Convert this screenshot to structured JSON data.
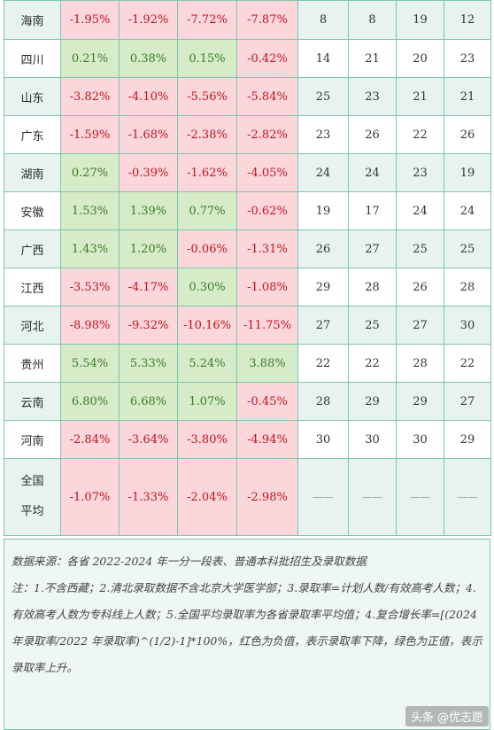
{
  "rows": [
    {
      "province": "海南",
      "v": [
        "-1.95%",
        "-1.92%",
        "-7.72%",
        "-7.87%"
      ],
      "s": [
        "neg",
        "neg",
        "neg",
        "neg"
      ],
      "ranks": [
        "8",
        "8",
        "19",
        "12"
      ]
    },
    {
      "province": "四川",
      "v": [
        "0.21%",
        "0.38%",
        "0.15%",
        "-0.42%"
      ],
      "s": [
        "pos",
        "pos",
        "pos",
        "neg"
      ],
      "ranks": [
        "14",
        "21",
        "20",
        "23"
      ]
    },
    {
      "province": "山东",
      "v": [
        "-3.82%",
        "-4.10%",
        "-5.56%",
        "-5.84%"
      ],
      "s": [
        "neg",
        "neg",
        "neg",
        "neg"
      ],
      "ranks": [
        "25",
        "23",
        "21",
        "21"
      ]
    },
    {
      "province": "广东",
      "v": [
        "-1.59%",
        "-1.68%",
        "-2.38%",
        "-2.82%"
      ],
      "s": [
        "neg",
        "neg",
        "neg",
        "neg"
      ],
      "ranks": [
        "23",
        "26",
        "22",
        "26"
      ]
    },
    {
      "province": "湖南",
      "v": [
        "0.27%",
        "-0.39%",
        "-1.62%",
        "-4.05%"
      ],
      "s": [
        "pos",
        "neg",
        "neg",
        "neg"
      ],
      "ranks": [
        "24",
        "24",
        "23",
        "19"
      ]
    },
    {
      "province": "安徽",
      "v": [
        "1.53%",
        "1.39%",
        "0.77%",
        "-0.62%"
      ],
      "s": [
        "pos",
        "pos",
        "pos",
        "neg"
      ],
      "ranks": [
        "19",
        "17",
        "24",
        "24"
      ]
    },
    {
      "province": "广西",
      "v": [
        "1.43%",
        "1.20%",
        "-0.06%",
        "-1.31%"
      ],
      "s": [
        "pos",
        "pos",
        "neg",
        "neg"
      ],
      "ranks": [
        "26",
        "27",
        "25",
        "25"
      ]
    },
    {
      "province": "江西",
      "v": [
        "-3.53%",
        "-4.17%",
        "0.30%",
        "-1.08%"
      ],
      "s": [
        "neg",
        "neg",
        "pos",
        "neg"
      ],
      "ranks": [
        "29",
        "28",
        "26",
        "28"
      ]
    },
    {
      "province": "河北",
      "v": [
        "-8.98%",
        "-9.32%",
        "-10.16%",
        "-11.75%"
      ],
      "s": [
        "neg",
        "neg",
        "neg",
        "neg"
      ],
      "ranks": [
        "27",
        "25",
        "27",
        "30"
      ]
    },
    {
      "province": "贵州",
      "v": [
        "5.54%",
        "5.33%",
        "5.24%",
        "3.88%"
      ],
      "s": [
        "pos",
        "pos",
        "pos",
        "pos"
      ],
      "ranks": [
        "22",
        "22",
        "28",
        "22"
      ]
    },
    {
      "province": "云南",
      "v": [
        "6.80%",
        "6.68%",
        "1.07%",
        "-0.45%"
      ],
      "s": [
        "pos",
        "pos",
        "pos",
        "neg"
      ],
      "ranks": [
        "28",
        "29",
        "29",
        "27"
      ]
    },
    {
      "province": "河南",
      "v": [
        "-2.84%",
        "-3.64%",
        "-3.80%",
        "-4.94%"
      ],
      "s": [
        "neg",
        "neg",
        "neg",
        "neg"
      ],
      "ranks": [
        "30",
        "30",
        "30",
        "29"
      ]
    }
  ],
  "national": {
    "label_line1": "全国",
    "label_line2": "平均",
    "v": [
      "-1.07%",
      "-1.33%",
      "-2.04%",
      "-2.98%"
    ],
    "dash": "——"
  },
  "notes": {
    "source": "数据来源：各省 2022-2024 年一分一段表、普通本科批招生及录取数据",
    "note": "注：1.不含西藏；2.清北录取数据不含北京大学医学部；3.录取率=计划人数/有效高考人数；4.有效高考人数为专科线上人数；5.全国平均录取率为各省录取率平均值；4.复合增长率=[(2024 年录取率/2022 年录取率)^(1/2)-1]*100%，红色为负值，表示录取率下降，绿色为正值，表示录取率上升。"
  },
  "watermark": "头条 @优志愿",
  "colors": {
    "negative": "#c1121f",
    "positive": "#3b7a2a",
    "neg_bg": "#fbd7dc",
    "pos_bg": "#d6ecc8",
    "border": "#7fc4ad"
  }
}
